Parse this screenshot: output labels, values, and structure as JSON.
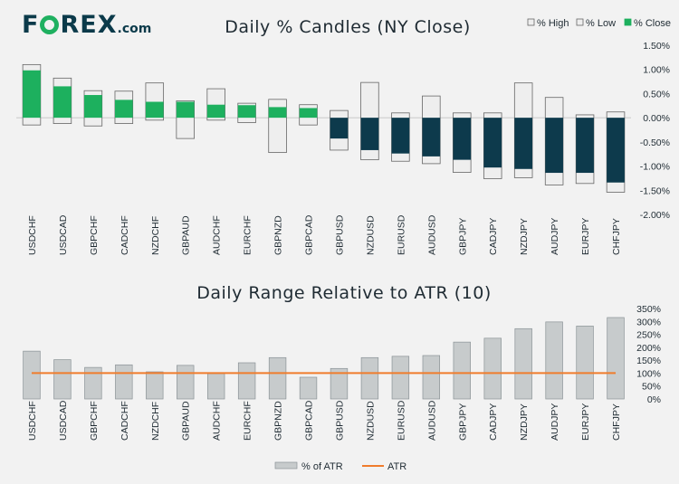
{
  "brand": {
    "name_pre": "F",
    "name_post": "REX",
    "suffix": ".com"
  },
  "colors": {
    "up": "#1db05e",
    "down": "#0d3a4c",
    "box": "#eeeeee",
    "box_stroke": "#666666",
    "atr_bar": "#c7cbcc",
    "atr_line": "#f07c2c",
    "text": "#1f2b33"
  },
  "chart_data": [
    {
      "type": "bar",
      "title": "Daily % Candles (NY Close)",
      "legend": [
        "% High",
        "% Low",
        "% Close"
      ],
      "categories": [
        "USDCHF",
        "USDCAD",
        "GBPCHF",
        "CADCHF",
        "NZDCHF",
        "GBPAUD",
        "AUDCHF",
        "EURCHF",
        "GBPNZD",
        "GBPCAD",
        "GBPUSD",
        "NZDUSD",
        "EURUSD",
        "AUDUSD",
        "GBPJPY",
        "CADJPY",
        "NZDJPY",
        "AUDJPY",
        "EURJPY",
        "CHFJPY"
      ],
      "series": [
        {
          "name": "% High",
          "values": [
            1.1,
            0.82,
            0.56,
            0.55,
            0.72,
            0.35,
            0.6,
            0.3,
            0.38,
            0.27,
            0.15,
            0.73,
            0.1,
            0.45,
            0.1,
            0.1,
            0.72,
            0.42,
            0.06,
            0.12
          ]
        },
        {
          "name": "% Low",
          "values": [
            -0.15,
            -0.12,
            -0.17,
            -0.12,
            -0.05,
            -0.43,
            -0.05,
            -0.1,
            -0.72,
            -0.15,
            -0.67,
            -0.87,
            -0.9,
            -0.95,
            -1.13,
            -1.26,
            -1.24,
            -1.39,
            -1.36,
            -1.54
          ]
        },
        {
          "name": "% Close",
          "values": [
            0.98,
            0.65,
            0.47,
            0.37,
            0.33,
            0.33,
            0.27,
            0.26,
            0.22,
            0.2,
            -0.43,
            -0.67,
            -0.74,
            -0.8,
            -0.87,
            -1.03,
            -1.06,
            -1.14,
            -1.14,
            -1.34
          ]
        }
      ],
      "yticks": [
        "1.50%",
        "1.00%",
        "0.50%",
        "0.00%",
        "-0.50%",
        "-1.00%",
        "-1.50%",
        "-2.00%"
      ],
      "ylim": [
        -2.0,
        1.5
      ]
    },
    {
      "type": "bar",
      "title": "Daily Range Relative to ATR (10)",
      "legend": [
        "% of ATR",
        "ATR"
      ],
      "categories": [
        "USDCHF",
        "USDCAD",
        "GBPCHF",
        "CADCHF",
        "NZDCHF",
        "GBPAUD",
        "AUDCHF",
        "EURCHF",
        "GBPNZD",
        "GBPCAD",
        "GBPUSD",
        "NZDUSD",
        "EURUSD",
        "AUDUSD",
        "GBPJPY",
        "CADJPY",
        "NZDJPY",
        "AUDJPY",
        "EURJPY",
        "CHFJPY"
      ],
      "series": [
        {
          "name": "% of ATR",
          "values": [
            185,
            152,
            122,
            132,
            105,
            130,
            98,
            140,
            160,
            84,
            118,
            160,
            165,
            168,
            220,
            235,
            272,
            298,
            282,
            315
          ]
        },
        {
          "name": "ATR",
          "values": [
            100,
            100,
            100,
            100,
            100,
            100,
            100,
            100,
            100,
            100,
            100,
            100,
            100,
            100,
            100,
            100,
            100,
            100,
            100,
            100
          ]
        }
      ],
      "yticks": [
        "350%",
        "300%",
        "250%",
        "200%",
        "150%",
        "100%",
        "50%",
        "0%"
      ],
      "ylim": [
        0,
        350
      ]
    }
  ]
}
